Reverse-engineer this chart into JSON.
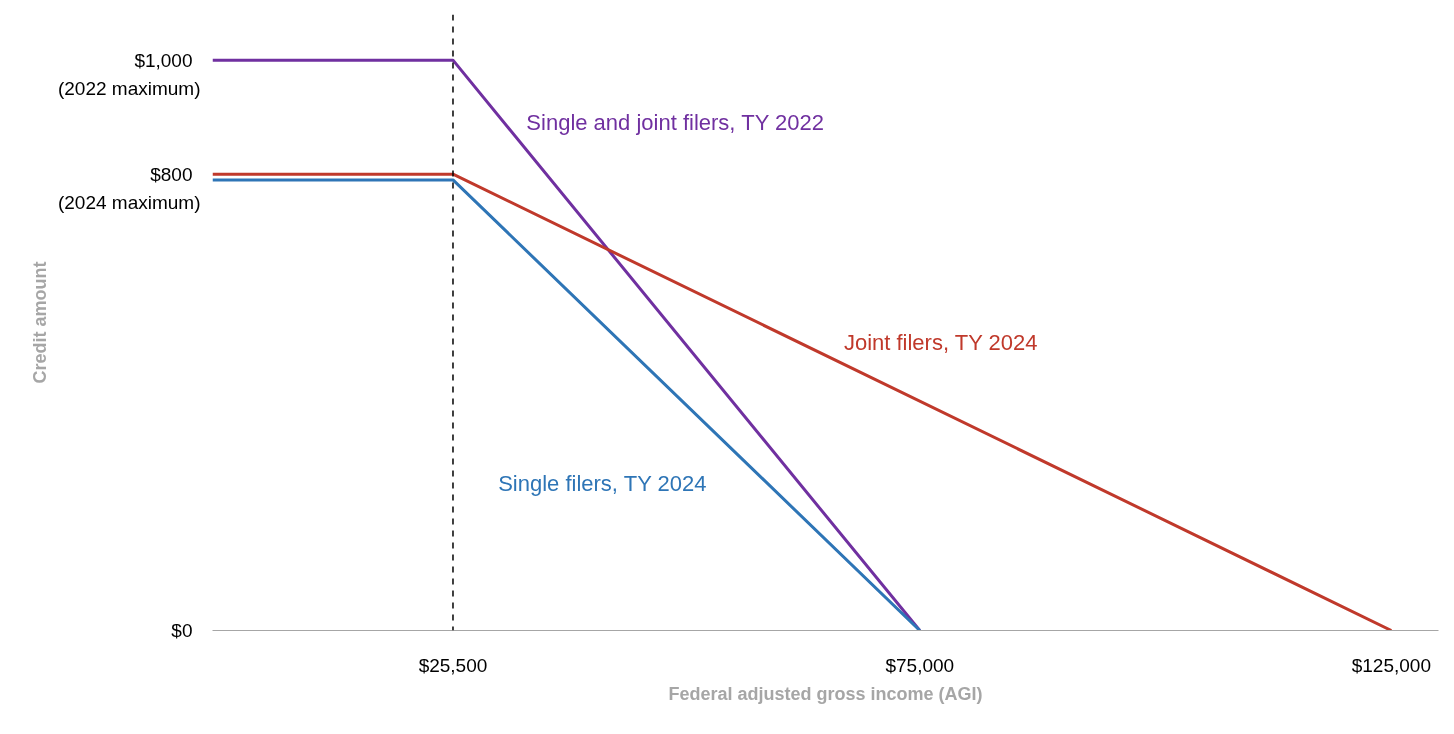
{
  "chart_data": {
    "type": "line",
    "xlabel": "Federal adjusted gross income (AGI)",
    "ylabel": "Credit amount",
    "xlim": [
      0,
      130000
    ],
    "ylim": [
      0,
      1080
    ],
    "xticks": [
      {
        "value": 25500,
        "label": "$25,500"
      },
      {
        "value": 75000,
        "label": "$75,000"
      },
      {
        "value": 125000,
        "label": "$125,000"
      }
    ],
    "yticks": [
      {
        "value": 0,
        "label": "$0"
      },
      {
        "value": 800,
        "label": "$800"
      },
      {
        "value": 1000,
        "label": "$1,000"
      }
    ],
    "grid": false,
    "marker": "none",
    "line_style": "solid",
    "series": [
      {
        "name": "Single and joint filers, TY 2022",
        "color": "#7030a0",
        "x": [
          0,
          25500,
          75000
        ],
        "values": [
          1000,
          1000,
          0
        ]
      },
      {
        "name": "Joint filers, TY 2024",
        "color": "#c0392b",
        "x": [
          0,
          25500,
          125000
        ],
        "values": [
          800,
          800,
          0
        ]
      },
      {
        "name": "Single filers, TY 2024",
        "color": "#2e75b6",
        "x": [
          0,
          25500,
          75000
        ],
        "values": [
          790,
          790,
          0
        ]
      }
    ],
    "ref_lines": [
      {
        "axis": "x",
        "value": 25500,
        "label": null,
        "color": "#000000",
        "line_style": "dashed"
      }
    ],
    "annotations": [
      "(2022 maximum)",
      "(2024 maximum)"
    ]
  }
}
